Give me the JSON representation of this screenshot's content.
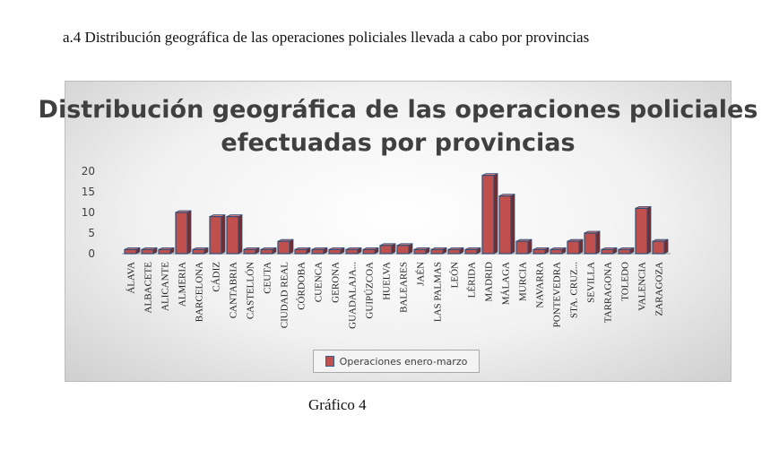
{
  "document": {
    "heading": "a.4 Distribución geográfica de las operaciones policiales llevada a cabo por provincias",
    "caption": "Gráfico 4"
  },
  "chart_data": {
    "type": "bar",
    "title": "Distribución geográfica de las operaciones policiales efectuadas por provincias",
    "xlabel": "",
    "ylabel": "",
    "ylim": [
      0,
      20
    ],
    "yticks": [
      0,
      5,
      10,
      15,
      20
    ],
    "legend_position": "bottom",
    "categories": [
      "ÁLAVA",
      "ALBACETE",
      "ALICANTE",
      "ALMERIA",
      "BARCELONA",
      "CÁDIZ",
      "CANTABRIA",
      "CASTELLÓN",
      "CEUTA",
      "CIUDAD REAL",
      "CÓRDOBA",
      "CUENCA",
      "GERONA",
      "GUADALAJA...",
      "GUIPÚZCOA",
      "HUELVA",
      "BALEARES",
      "JAÉN",
      "LAS PALMAS",
      "LEÓN",
      "LÉRIDA",
      "MADRID",
      "MÁLAGA",
      "MURCIA",
      "NAVARRA",
      "PONTEVEDRA",
      "STA. CRUZ...",
      "SEVILLA",
      "TARRAGONA",
      "TOLEDO",
      "VALENCIA",
      "ZARAGOZA"
    ],
    "series": [
      {
        "name": "Operaciones enero-marzo",
        "color": "#c0504d",
        "values": [
          1,
          1,
          1,
          10,
          1,
          9,
          9,
          1,
          1,
          3,
          1,
          1,
          1,
          1,
          1,
          2,
          2,
          1,
          1,
          1,
          1,
          19,
          14,
          3,
          1,
          1,
          3,
          5,
          1,
          1,
          11,
          3
        ]
      }
    ]
  }
}
